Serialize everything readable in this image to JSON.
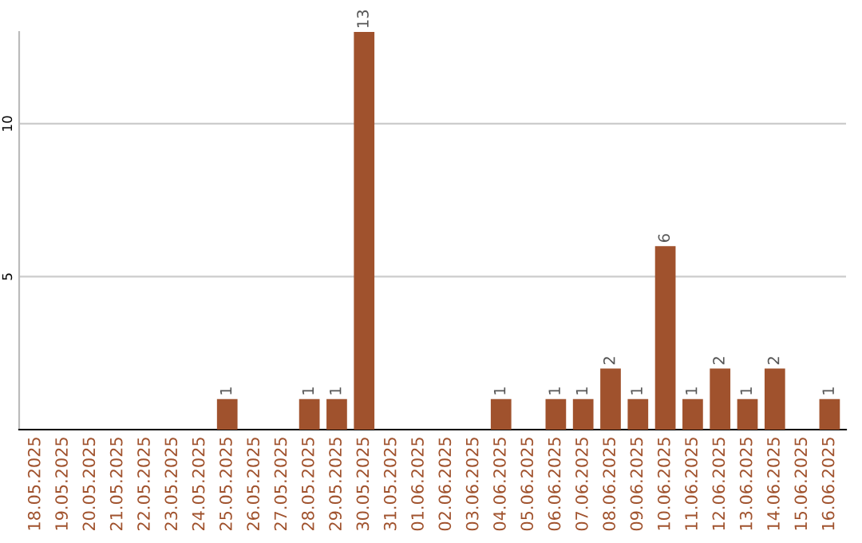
{
  "chart_data": {
    "type": "bar",
    "categories": [
      "18.05.2025",
      "19.05.2025",
      "20.05.2025",
      "21.05.2025",
      "22.05.2025",
      "23.05.2025",
      "24.05.2025",
      "25.05.2025",
      "26.05.2025",
      "27.05.2025",
      "28.05.2025",
      "29.05.2025",
      "30.05.2025",
      "31.05.2025",
      "01.06.2025",
      "02.06.2025",
      "03.06.2025",
      "04.06.2025",
      "05.06.2025",
      "06.06.2025",
      "07.06.2025",
      "08.06.2025",
      "09.06.2025",
      "10.06.2025",
      "11.06.2025",
      "12.06.2025",
      "13.06.2025",
      "14.06.2025",
      "15.06.2025",
      "16.06.2025"
    ],
    "values": [
      0,
      0,
      0,
      0,
      0,
      0,
      0,
      1,
      0,
      0,
      1,
      1,
      13,
      0,
      0,
      0,
      0,
      1,
      0,
      1,
      1,
      2,
      1,
      6,
      1,
      2,
      1,
      2,
      0,
      1
    ],
    "value_labels": [
      null,
      null,
      null,
      null,
      null,
      null,
      null,
      "1",
      null,
      null,
      "1",
      "1",
      "13",
      null,
      null,
      null,
      null,
      "1",
      null,
      "1",
      "1",
      "2",
      "1",
      "6",
      "1",
      "2",
      "1",
      "2",
      null,
      "1"
    ],
    "color": "#a0522d",
    "ylim": [
      0,
      13
    ],
    "yticks": [
      5,
      10
    ],
    "grid": "y"
  }
}
